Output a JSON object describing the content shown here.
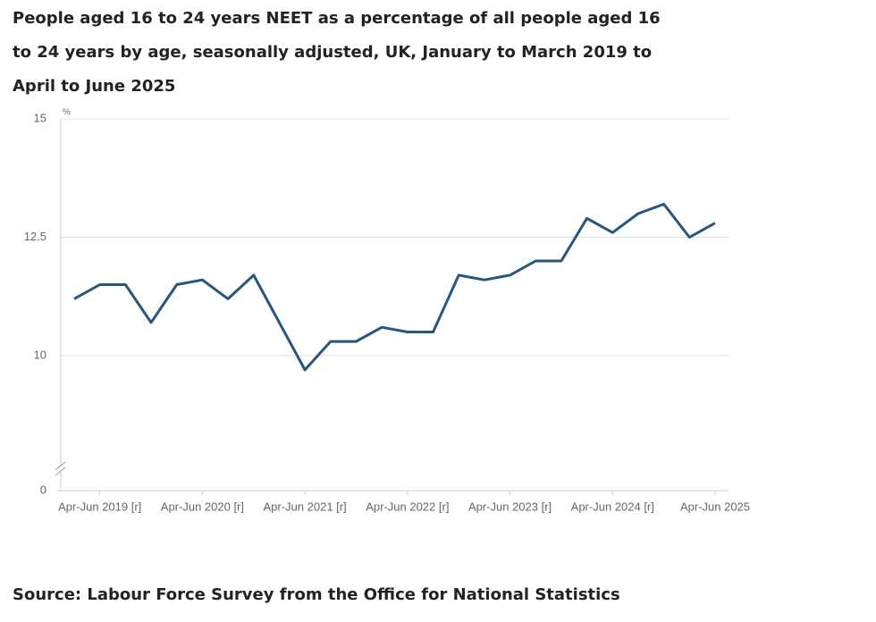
{
  "chart_data": {
    "type": "line",
    "title": "People aged 16 to 24 years NEET as a percentage of all people aged 16 to 24 years by age, seasonally adjusted, UK, January to March 2019 to April to June 2025",
    "y_unit": "%",
    "source": "Source: Labour Force Survey from the Office for National Statistics",
    "categories": [
      null,
      "Apr-Jun 2019 [r]",
      null,
      null,
      null,
      "Apr-Jun 2020 [r]",
      null,
      null,
      null,
      "Apr-Jun 2021 [r]",
      null,
      null,
      null,
      "Apr-Jun 2022 [r]",
      null,
      null,
      null,
      "Apr-Jun 2023 [r]",
      null,
      null,
      null,
      "Apr-Jun 2024 [r]",
      null,
      null,
      null,
      "Apr-Jun 2025"
    ],
    "series": [
      {
        "color": "#27567f",
        "values": [
          11.2,
          11.5,
          11.5,
          10.7,
          11.5,
          11.6,
          11.2,
          11.7,
          10.7,
          9.7,
          10.3,
          10.3,
          10.6,
          10.5,
          10.5,
          11.7,
          11.6,
          11.7,
          12.0,
          12.0,
          12.9,
          12.6,
          13.0,
          13.2,
          12.5,
          12.8
        ]
      }
    ],
    "ylim": [
      0,
      15
    ],
    "yticks": [
      0,
      10,
      12.5,
      15
    ],
    "y_axis_break": [
      0,
      10
    ],
    "grid": true
  }
}
